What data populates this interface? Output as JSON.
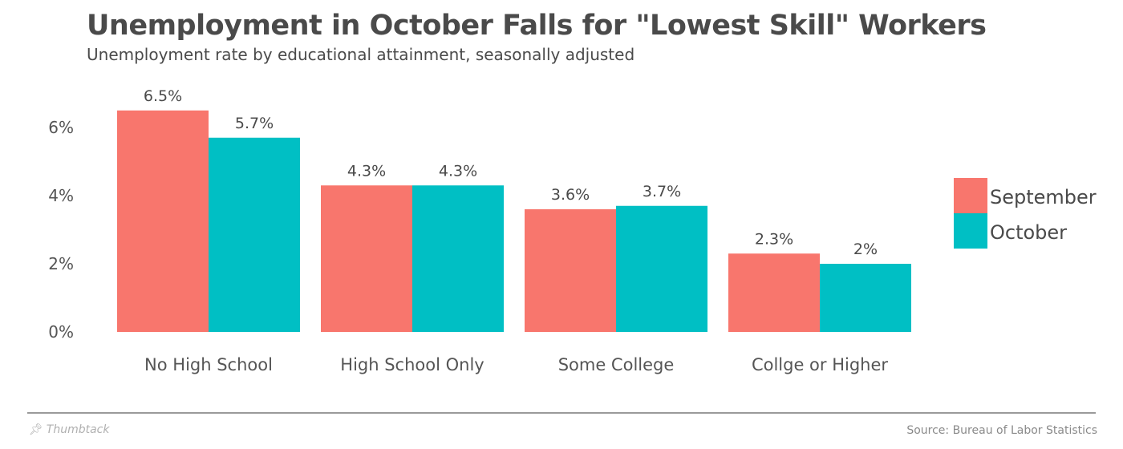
{
  "header": {
    "title": "Unemployment in October Falls for \"Lowest Skill\" Workers",
    "subtitle": "Unemployment rate by educational attainment, seasonally adjusted"
  },
  "footer": {
    "brand": "Thumbtack",
    "source": "Source: Bureau of Labor Statistics"
  },
  "colors": {
    "september": "#f8766d",
    "october": "#00bfc4",
    "text": "#4a4a4a",
    "axis_text": "#555555"
  },
  "chart_data": {
    "type": "bar",
    "title": "Unemployment in October Falls for \"Lowest Skill\" Workers",
    "subtitle": "Unemployment rate by educational attainment, seasonally adjusted",
    "xlabel": "",
    "ylabel": "",
    "categories": [
      "No High School",
      "High School Only",
      "Some College",
      "Collge or Higher"
    ],
    "series": [
      {
        "name": "September",
        "values": [
          6.5,
          4.3,
          3.6,
          2.3
        ],
        "labels": [
          "6.5%",
          "4.3%",
          "3.6%",
          "2.3%"
        ]
      },
      {
        "name": "October",
        "values": [
          5.7,
          4.3,
          3.7,
          2.0
        ],
        "labels": [
          "5.7%",
          "4.3%",
          "3.7%",
          "2%"
        ]
      }
    ],
    "ylim": [
      0,
      7
    ],
    "yticks": [
      0,
      2,
      4,
      6
    ],
    "ytick_labels": [
      "0%",
      "2%",
      "4%",
      "6%"
    ],
    "grid": false,
    "legend_position": "right"
  }
}
